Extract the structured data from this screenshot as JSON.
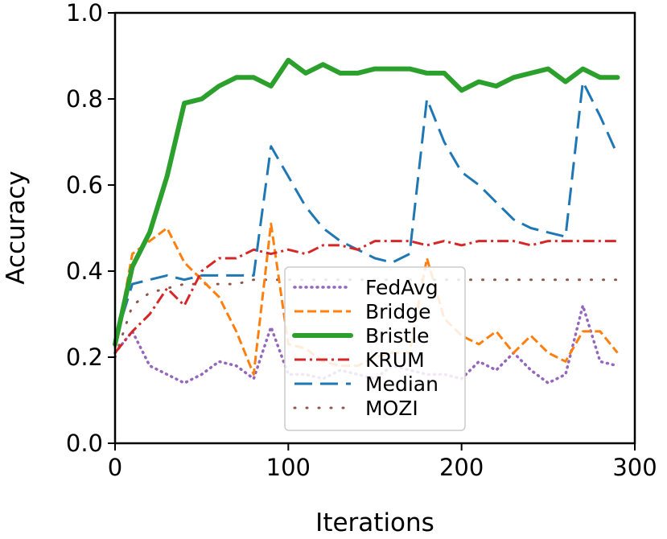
{
  "chart_data": {
    "type": "line",
    "xlabel": "Iterations",
    "ylabel": "Accuracy",
    "xlim": [
      0,
      300
    ],
    "ylim": [
      0.0,
      1.0
    ],
    "xticks": [
      0,
      100,
      200,
      300
    ],
    "xtick_labels": [
      "0",
      "100",
      "200",
      "300"
    ],
    "yticks": [
      0.0,
      0.2,
      0.4,
      0.6,
      0.8,
      1.0
    ],
    "ytick_labels": [
      "0.0",
      "0.2",
      "0.4",
      "0.6",
      "0.8",
      "1.0"
    ],
    "grid": false,
    "legend_position": "center-bottom",
    "x": [
      0,
      10,
      20,
      30,
      40,
      50,
      60,
      70,
      80,
      90,
      100,
      110,
      120,
      130,
      140,
      150,
      160,
      170,
      180,
      190,
      200,
      210,
      220,
      230,
      240,
      250,
      260,
      270,
      280,
      290
    ],
    "series": [
      {
        "name": "FedAvg",
        "color": "#9467bd",
        "style": "dotted",
        "values": [
          0.21,
          0.26,
          0.18,
          0.16,
          0.14,
          0.16,
          0.19,
          0.18,
          0.15,
          0.27,
          0.16,
          0.16,
          0.15,
          0.17,
          0.16,
          0.15,
          0.18,
          0.17,
          0.16,
          0.16,
          0.15,
          0.19,
          0.17,
          0.21,
          0.17,
          0.14,
          0.16,
          0.32,
          0.19,
          0.18
        ]
      },
      {
        "name": "Bridge",
        "color": "#ff7f0e",
        "style": "dashed",
        "values": [
          0.22,
          0.44,
          0.47,
          0.5,
          0.42,
          0.38,
          0.34,
          0.26,
          0.16,
          0.51,
          0.23,
          0.22,
          0.19,
          0.18,
          0.18,
          0.2,
          0.21,
          0.21,
          0.43,
          0.29,
          0.25,
          0.23,
          0.26,
          0.21,
          0.25,
          0.21,
          0.19,
          0.26,
          0.26,
          0.21
        ]
      },
      {
        "name": "Bristle",
        "color": "#2ca02c",
        "style": "solid",
        "values": [
          0.23,
          0.41,
          0.49,
          0.62,
          0.79,
          0.8,
          0.83,
          0.85,
          0.85,
          0.83,
          0.89,
          0.86,
          0.88,
          0.86,
          0.86,
          0.87,
          0.87,
          0.87,
          0.86,
          0.86,
          0.82,
          0.84,
          0.83,
          0.85,
          0.86,
          0.87,
          0.84,
          0.87,
          0.85,
          0.85
        ]
      },
      {
        "name": "KRUM",
        "color": "#d62728",
        "style": "dashdot",
        "values": [
          0.21,
          0.26,
          0.3,
          0.36,
          0.32,
          0.4,
          0.43,
          0.43,
          0.45,
          0.44,
          0.45,
          0.44,
          0.46,
          0.46,
          0.45,
          0.47,
          0.47,
          0.47,
          0.46,
          0.47,
          0.46,
          0.47,
          0.47,
          0.47,
          0.46,
          0.47,
          0.47,
          0.47,
          0.47,
          0.47
        ]
      },
      {
        "name": "Median",
        "color": "#1f77b4",
        "style": "longdash",
        "values": [
          0.24,
          0.37,
          0.38,
          0.39,
          0.38,
          0.39,
          0.39,
          0.39,
          0.39,
          0.69,
          0.62,
          0.55,
          0.5,
          0.47,
          0.45,
          0.43,
          0.42,
          0.44,
          0.8,
          0.7,
          0.63,
          0.6,
          0.56,
          0.52,
          0.5,
          0.49,
          0.48,
          0.84,
          0.76,
          0.67
        ]
      },
      {
        "name": "MOZI",
        "color": "#8c564b",
        "style": "loosedot",
        "values": [
          0.2,
          0.32,
          0.35,
          0.36,
          0.37,
          0.37,
          0.37,
          0.37,
          0.38,
          0.38,
          0.38,
          0.38,
          0.38,
          0.38,
          0.38,
          0.38,
          0.38,
          0.38,
          0.38,
          0.38,
          0.38,
          0.38,
          0.38,
          0.38,
          0.38,
          0.38,
          0.38,
          0.38,
          0.38,
          0.38
        ]
      }
    ]
  }
}
